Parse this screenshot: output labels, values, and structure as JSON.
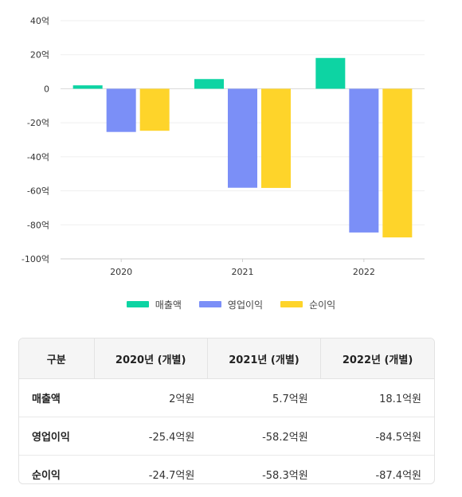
{
  "chart_data": {
    "type": "bar",
    "categories": [
      "2020",
      "2021",
      "2022"
    ],
    "series": [
      {
        "name": "매출액",
        "values": [
          2,
          5.7,
          18.1
        ],
        "color": "#0dd4a3"
      },
      {
        "name": "영업이익",
        "values": [
          -25.4,
          -58.2,
          -84.5
        ],
        "color": "#7b8ff7"
      },
      {
        "name": "순이익",
        "values": [
          -24.7,
          -58.3,
          -87.4
        ],
        "color": "#fed42a"
      }
    ],
    "yticks": [
      "40억",
      "20억",
      "0",
      "-20억",
      "-40억",
      "-60억",
      "-80억",
      "-100억"
    ],
    "ylim": [
      -100,
      40
    ],
    "grid": true,
    "legend_position": "bottom"
  },
  "table": {
    "headers": [
      "구분",
      "2020년 (개별)",
      "2021년 (개별)",
      "2022년 (개별)"
    ],
    "rows": [
      {
        "label": "매출액",
        "values": [
          "2억원",
          "5.7억원",
          "18.1억원"
        ]
      },
      {
        "label": "영업이익",
        "values": [
          "-25.4억원",
          "-58.2억원",
          "-84.5억원"
        ]
      },
      {
        "label": "순이익",
        "values": [
          "-24.7억원",
          "-58.3억원",
          "-87.4억원"
        ]
      }
    ]
  }
}
